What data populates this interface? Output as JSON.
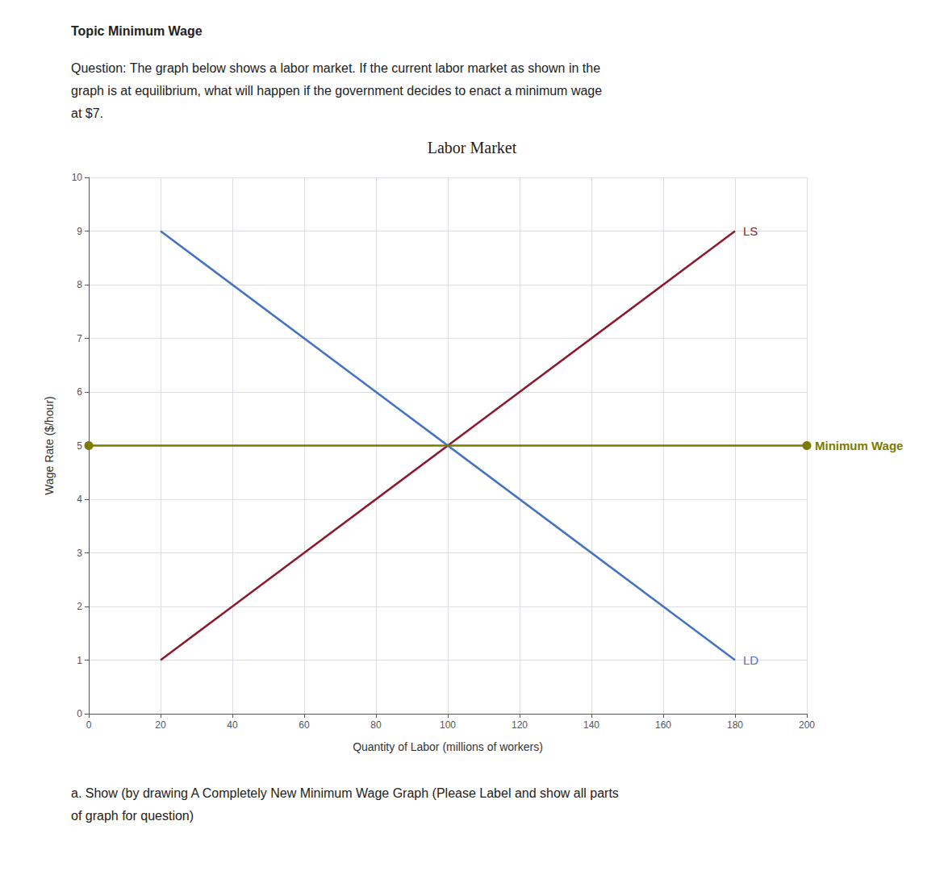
{
  "chart_data": {
    "type": "line",
    "title": "Labor Market",
    "subtitle": [
      "Topic Minimum Wage",
      "Question: The graph below shows a labor market. If the current labor market as shown in the",
      "graph is at equilibrium, what will happen if the government decides to enact a minimum wage",
      "at $7."
    ],
    "annotations": [
      "a. Show (by drawing A Completely New Minimum Wage Graph (Please Label and show all parts",
      "of graph for question)"
    ],
    "xlabel": "Quantity of Labor (millions of workers)",
    "ylabel": "Wage Rate ($/hour)",
    "xlim": [
      0,
      200
    ],
    "ylim": [
      0,
      10
    ],
    "xticks": [
      0,
      20,
      40,
      60,
      80,
      100,
      120,
      140,
      160,
      180,
      200
    ],
    "yticks": [
      0,
      1,
      2,
      3,
      4,
      5,
      6,
      7,
      8,
      9,
      10
    ],
    "grid": true,
    "series": [
      {
        "name": "LS",
        "color": "#8B1A2E",
        "marker": "none",
        "x": [
          20,
          180
        ],
        "values": [
          1,
          9
        ]
      },
      {
        "name": "LD",
        "color": "#4472C4",
        "marker": "none",
        "x": [
          20,
          180
        ],
        "values": [
          9,
          1
        ]
      },
      {
        "name": "Minimum Wage",
        "color": "#7B7B00",
        "marker": "circle",
        "x": [
          0,
          200
        ],
        "values": [
          5,
          5
        ]
      }
    ]
  }
}
